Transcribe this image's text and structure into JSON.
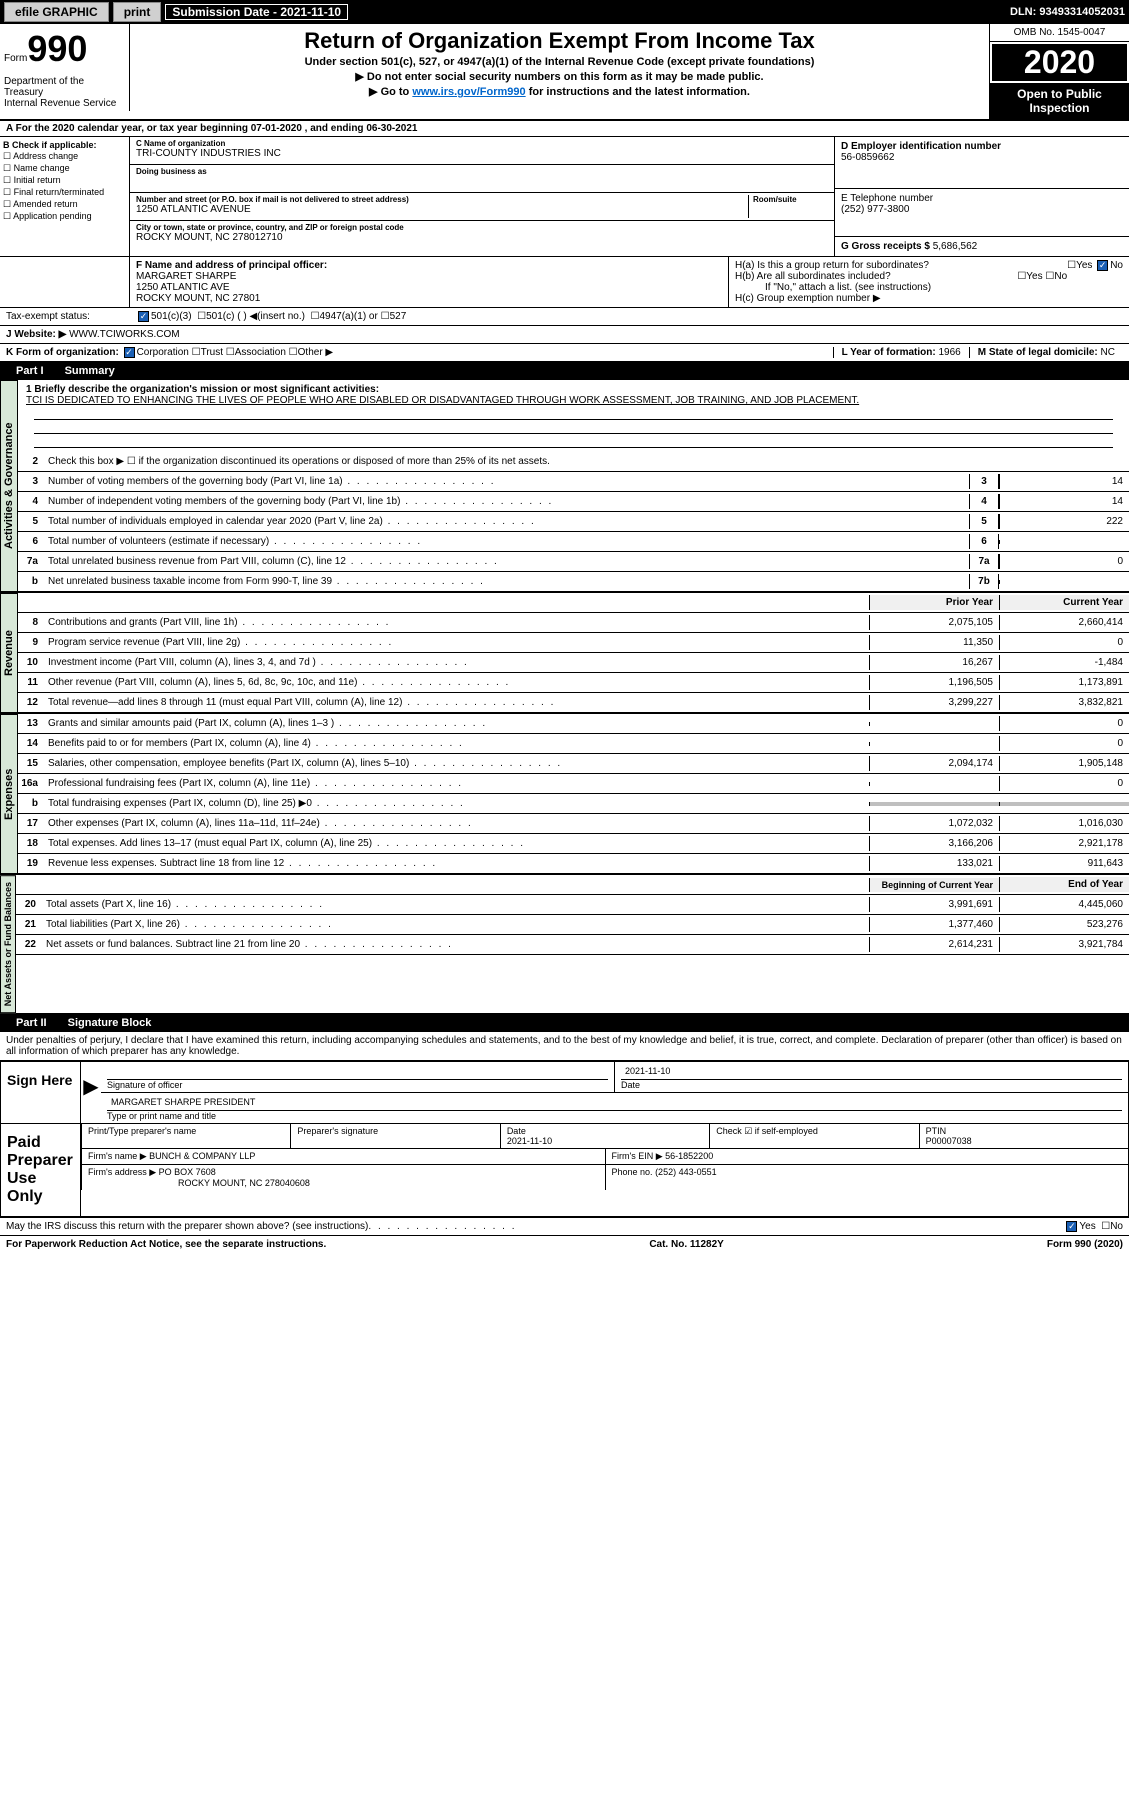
{
  "topbar": {
    "efile": "efile GRAPHIC",
    "print": "print",
    "sub_date_label": "Submission Date - 2021-11-10",
    "dln": "DLN: 93493314052031"
  },
  "header": {
    "form_label": "Form",
    "form_num": "990",
    "title": "Return of Organization Exempt From Income Tax",
    "sub1": "Under section 501(c), 527, or 4947(a)(1) of the Internal Revenue Code (except private foundations)",
    "sub2": "▶ Do not enter social security numbers on this form as it may be made public.",
    "sub3_pre": "▶ Go to ",
    "sub3_link": "www.irs.gov/Form990",
    "sub3_post": " for instructions and the latest information.",
    "omb": "OMB No. 1545-0047",
    "year": "2020",
    "inspection": "Open to Public Inspection",
    "dept": "Department of the Treasury",
    "irs": "Internal Revenue Service"
  },
  "row_a": "A For the 2020 calendar year, or tax year beginning 07-01-2020     , and ending 06-30-2021",
  "col_b": {
    "label": "B Check if applicable:",
    "items": [
      "Address change",
      "Name change",
      "Initial return",
      "Final return/terminated",
      "Amended return",
      "Application pending"
    ]
  },
  "org": {
    "c_label": "C Name of organization",
    "name": "TRI-COUNTY INDUSTRIES INC",
    "dba_label": "Doing business as",
    "dba": "",
    "addr_label": "Number and street (or P.O. box if mail is not delivered to street address)",
    "room_label": "Room/suite",
    "addr": "1250 ATLANTIC AVENUE",
    "city_label": "City or town, state or province, country, and ZIP or foreign postal code",
    "city": "ROCKY MOUNT, NC  278012710"
  },
  "d": {
    "label": "D Employer identification number",
    "val": "56-0859662"
  },
  "e": {
    "label": "E Telephone number",
    "val": "(252) 977-3800"
  },
  "g": {
    "label": "G Gross receipts $",
    "val": "5,686,562"
  },
  "f": {
    "label": "F  Name and address of principal officer:",
    "name": "MARGARET SHARPE",
    "addr1": "1250 ATLANTIC AVE",
    "addr2": "ROCKY MOUNT, NC  27801"
  },
  "h": {
    "a": "H(a)  Is this a group return for subordinates?",
    "b": "H(b)  Are all subordinates included?",
    "b_note": "If \"No,\" attach a list. (see instructions)",
    "c": "H(c)  Group exemption number ▶"
  },
  "tax_exempt": {
    "label": "Tax-exempt status:",
    "opt1": "501(c)(3)",
    "opt2": "501(c) (  ) ◀(insert no.)",
    "opt3": "4947(a)(1) or",
    "opt4": "527"
  },
  "website": {
    "label": "J   Website: ▶",
    "val": "WWW.TCIWORKS.COM"
  },
  "k": "K Form of organization:",
  "k_opts": [
    "Corporation",
    "Trust",
    "Association",
    "Other ▶"
  ],
  "l": {
    "label": "L Year of formation:",
    "val": "1966"
  },
  "m": {
    "label": "M State of legal domicile:",
    "val": "NC"
  },
  "part1": {
    "num": "Part I",
    "title": "Summary"
  },
  "mission_label": "1  Briefly describe the organization's mission or most significant activities:",
  "mission": "TCI IS DEDICATED TO ENHANCING THE LIVES OF PEOPLE WHO ARE DISABLED OR DISADVANTAGED THROUGH WORK ASSESSMENT, JOB TRAINING, AND JOB PLACEMENT.",
  "line2": "Check this box ▶ ☐  if the organization discontinued its operations or disposed of more than 25% of its net assets.",
  "gov_rows": [
    {
      "n": "3",
      "d": "Number of voting members of the governing body (Part VI, line 1a)",
      "b": "3",
      "v": "14"
    },
    {
      "n": "4",
      "d": "Number of independent voting members of the governing body (Part VI, line 1b)",
      "b": "4",
      "v": "14"
    },
    {
      "n": "5",
      "d": "Total number of individuals employed in calendar year 2020 (Part V, line 2a)",
      "b": "5",
      "v": "222"
    },
    {
      "n": "6",
      "d": "Total number of volunteers (estimate if necessary)",
      "b": "6",
      "v": ""
    },
    {
      "n": "7a",
      "d": "Total unrelated business revenue from Part VIII, column (C), line 12",
      "b": "7a",
      "v": "0"
    },
    {
      "n": "b",
      "d": "Net unrelated business taxable income from Form 990-T, line 39",
      "b": "7b",
      "v": ""
    }
  ],
  "py_label": "Prior Year",
  "cy_label": "Current Year",
  "rev_rows": [
    {
      "n": "8",
      "d": "Contributions and grants (Part VIII, line 1h)",
      "py": "2,075,105",
      "cy": "2,660,414"
    },
    {
      "n": "9",
      "d": "Program service revenue (Part VIII, line 2g)",
      "py": "11,350",
      "cy": "0"
    },
    {
      "n": "10",
      "d": "Investment income (Part VIII, column (A), lines 3, 4, and 7d )",
      "py": "16,267",
      "cy": "-1,484"
    },
    {
      "n": "11",
      "d": "Other revenue (Part VIII, column (A), lines 5, 6d, 8c, 9c, 10c, and 11e)",
      "py": "1,196,505",
      "cy": "1,173,891"
    },
    {
      "n": "12",
      "d": "Total revenue—add lines 8 through 11 (must equal Part VIII, column (A), line 12)",
      "py": "3,299,227",
      "cy": "3,832,821"
    }
  ],
  "exp_rows": [
    {
      "n": "13",
      "d": "Grants and similar amounts paid (Part IX, column (A), lines 1–3 )",
      "py": "",
      "cy": "0"
    },
    {
      "n": "14",
      "d": "Benefits paid to or for members (Part IX, column (A), line 4)",
      "py": "",
      "cy": "0"
    },
    {
      "n": "15",
      "d": "Salaries, other compensation, employee benefits (Part IX, column (A), lines 5–10)",
      "py": "2,094,174",
      "cy": "1,905,148"
    },
    {
      "n": "16a",
      "d": "Professional fundraising fees (Part IX, column (A), line 11e)",
      "py": "",
      "cy": "0"
    },
    {
      "n": "b",
      "d": "Total fundraising expenses (Part IX, column (D), line 25) ▶0",
      "py": "gray",
      "cy": "gray"
    },
    {
      "n": "17",
      "d": "Other expenses (Part IX, column (A), lines 11a–11d, 11f–24e)",
      "py": "1,072,032",
      "cy": "1,016,030"
    },
    {
      "n": "18",
      "d": "Total expenses. Add lines 13–17 (must equal Part IX, column (A), line 25)",
      "py": "3,166,206",
      "cy": "2,921,178"
    },
    {
      "n": "19",
      "d": "Revenue less expenses. Subtract line 18 from line 12",
      "py": "133,021",
      "cy": "911,643"
    }
  ],
  "na_hdr_py": "Beginning of Current Year",
  "na_hdr_cy": "End of Year",
  "na_rows": [
    {
      "n": "20",
      "d": "Total assets (Part X, line 16)",
      "py": "3,991,691",
      "cy": "4,445,060"
    },
    {
      "n": "21",
      "d": "Total liabilities (Part X, line 26)",
      "py": "1,377,460",
      "cy": "523,276"
    },
    {
      "n": "22",
      "d": "Net assets or fund balances. Subtract line 21 from line 20",
      "py": "2,614,231",
      "cy": "3,921,784"
    }
  ],
  "part2": {
    "num": "Part II",
    "title": "Signature Block"
  },
  "perjury": "Under penalties of perjury, I declare that I have examined this return, including accompanying schedules and statements, and to the best of my knowledge and belief, it is true, correct, and complete. Declaration of preparer (other than officer) is based on all information of which preparer has any knowledge.",
  "sign": {
    "here": "Sign Here",
    "sig_officer": "Signature of officer",
    "date": "Date",
    "date_val": "2021-11-10",
    "name_title": "MARGARET SHARPE PRESIDENT",
    "type_label": "Type or print name and title"
  },
  "paid": {
    "label": "Paid Preparer Use Only",
    "pt_name": "Print/Type preparer's name",
    "sig": "Preparer's signature",
    "date": "Date",
    "date_val": "2021-11-10",
    "check": "Check ☑ if self-employed",
    "ptin_label": "PTIN",
    "ptin": "P00007038",
    "firm_name_label": "Firm's name    ▶",
    "firm_name": "BUNCH & COMPANY LLP",
    "firm_ein_label": "Firm's EIN ▶",
    "firm_ein": "56-1852200",
    "firm_addr_label": "Firm's address ▶",
    "firm_addr1": "PO BOX 7608",
    "firm_addr2": "ROCKY MOUNT, NC  278040608",
    "phone_label": "Phone no.",
    "phone": "(252) 443-0551"
  },
  "discuss": "May the IRS discuss this return with the preparer shown above? (see instructions)",
  "footer": {
    "left": "For Paperwork Reduction Act Notice, see the separate instructions.",
    "mid": "Cat. No. 11282Y",
    "right": "Form 990 (2020)"
  },
  "vlabels": {
    "gov": "Activities & Governance",
    "rev": "Revenue",
    "exp": "Expenses",
    "na": "Net Assets or Fund Balances"
  }
}
